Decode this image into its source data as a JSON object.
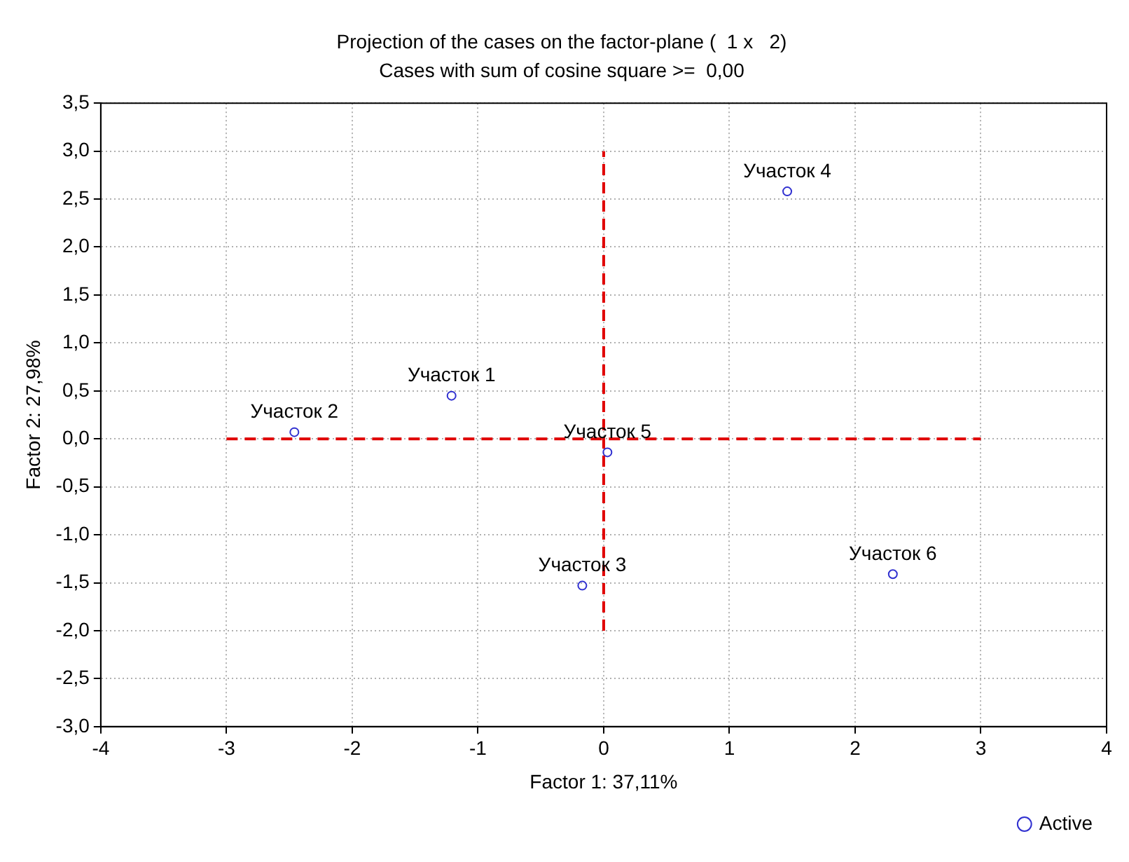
{
  "chart_data": {
    "type": "scatter",
    "title": "Projection of the cases on the factor-plane (  1 x   2)",
    "subtitle": "Cases with sum of cosine square >=  0,00",
    "xlabel": "Factor 1: 37,11%",
    "ylabel": "Factor 2: 27,98%",
    "xlim": [
      -4,
      4
    ],
    "xticks": [
      -4,
      -3,
      -2,
      -1,
      0,
      1,
      2,
      3,
      4
    ],
    "ylim": [
      -3,
      3.5
    ],
    "yticks": [
      {
        "value": -3,
        "label": "-3,0"
      },
      {
        "value": -2.5,
        "label": "-2,5"
      },
      {
        "value": -2,
        "label": "-2,0"
      },
      {
        "value": -1.5,
        "label": "-1,5"
      },
      {
        "value": -1,
        "label": "-1,0"
      },
      {
        "value": -0.5,
        "label": "-0,5"
      },
      {
        "value": 0,
        "label": "0,0"
      },
      {
        "value": 0.5,
        "label": "0,5"
      },
      {
        "value": 1,
        "label": "1,0"
      },
      {
        "value": 1.5,
        "label": "1,5"
      },
      {
        "value": 2,
        "label": "2,0"
      },
      {
        "value": 2.5,
        "label": "2,5"
      },
      {
        "value": 3,
        "label": "3,0"
      },
      {
        "value": 3.5,
        "label": "3,5"
      }
    ],
    "grid": true,
    "legend": "bottom right",
    "marker": "circle",
    "series": [
      {
        "name": "Active",
        "type": "scatter",
        "color": "#3030d0",
        "x": [
          -1.21,
          -2.46,
          -0.17,
          1.46,
          0.03,
          2.3
        ],
        "values": [
          0.45,
          0.07,
          -1.53,
          2.58,
          -0.14,
          -1.41
        ]
      },
      {
        "type": "line",
        "color": "#e00000",
        "line_style": "dashed",
        "marker": "none",
        "x": [
          -3,
          3
        ],
        "values": [
          0,
          0
        ]
      },
      {
        "type": "line",
        "color": "#e00000",
        "line_style": "dashed",
        "marker": "none",
        "x": [
          0,
          0
        ],
        "values": [
          -2,
          3
        ]
      }
    ],
    "annotations": [
      {
        "text": "Участок 1",
        "x": -1.21,
        "y": 0.45
      },
      {
        "text": "Участок 2",
        "x": -2.46,
        "y": 0.07
      },
      {
        "text": "Участок 3",
        "x": -0.17,
        "y": -1.53
      },
      {
        "text": "Участок 4",
        "x": 1.46,
        "y": 2.58
      },
      {
        "text": "Участок 5",
        "x": 0.03,
        "y": -0.14
      },
      {
        "text": "Участок 6",
        "x": 2.3,
        "y": -1.41
      }
    ]
  }
}
